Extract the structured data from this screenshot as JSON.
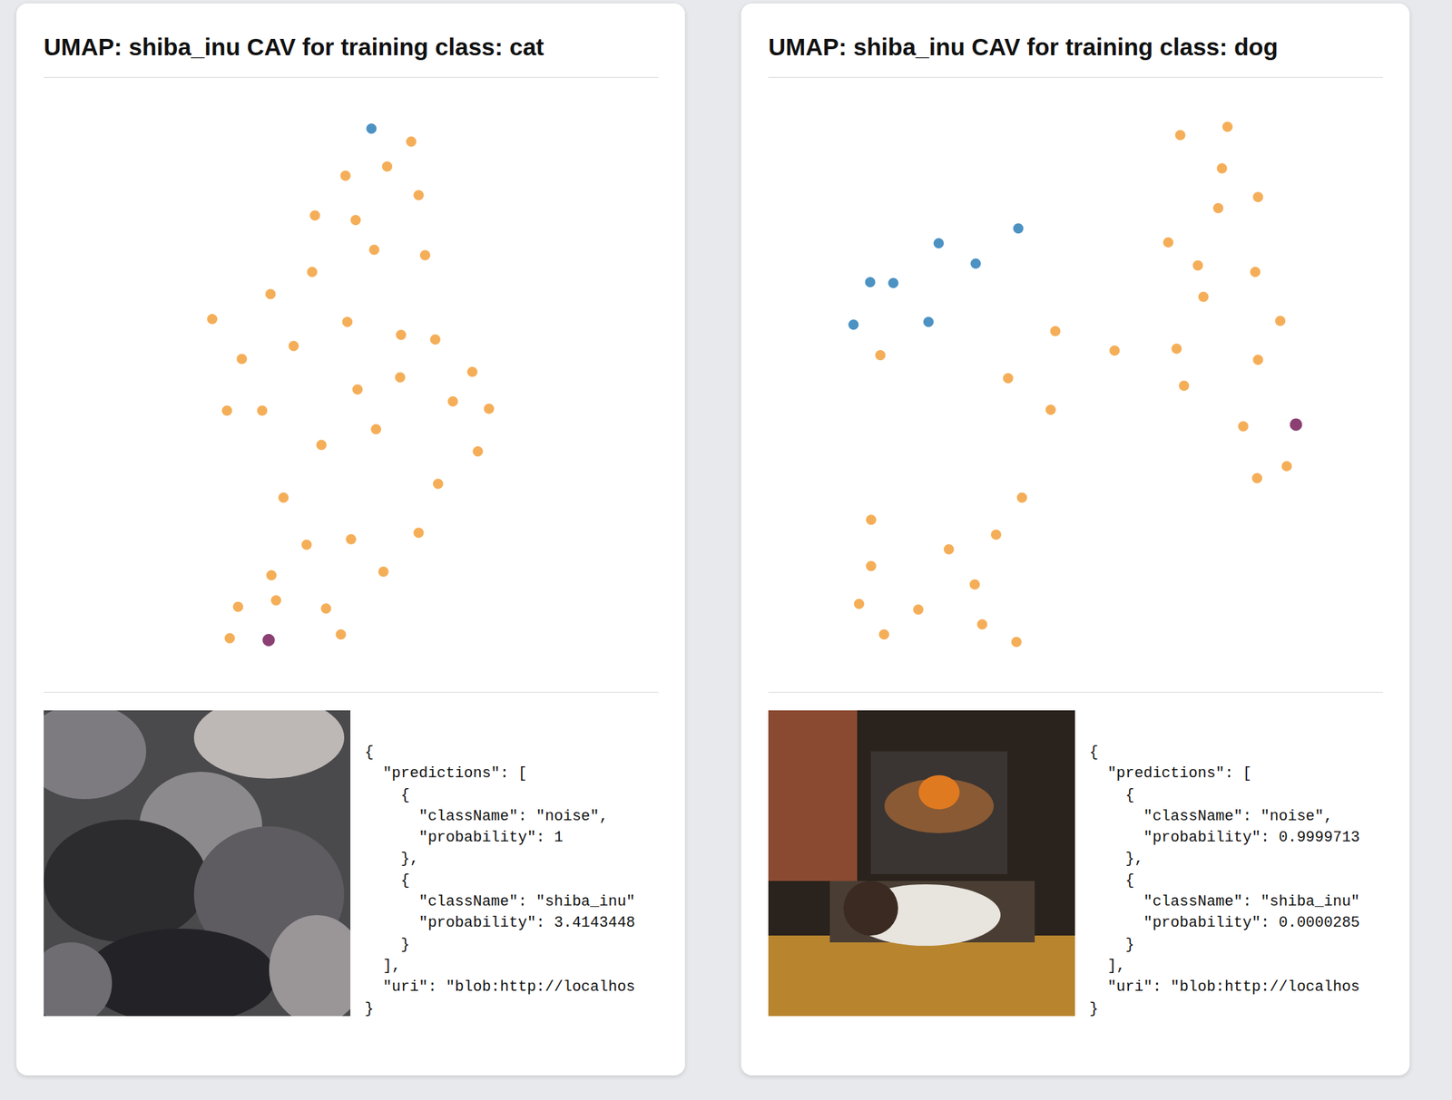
{
  "chart_data": [
    {
      "type": "scatter",
      "title": "UMAP: shiba_inu CAV for training class: cat",
      "xlim": [
        0,
        664
      ],
      "ylim": [
        0,
        650
      ],
      "tick_labels": false,
      "grid": false,
      "marker": "circle",
      "series": [
        {
          "color": "#f39a2e",
          "points": [
            [
              397,
              587
            ],
            [
              371,
              560
            ],
            [
              326,
              550
            ],
            [
              405,
              529
            ],
            [
              293,
              507
            ],
            [
              337,
              502
            ],
            [
              357,
              470
            ],
            [
              412,
              464
            ],
            [
              290,
              446
            ],
            [
              245,
              422
            ],
            [
              182,
              395
            ],
            [
              328,
              392
            ],
            [
              386,
              378
            ],
            [
              423,
              373
            ],
            [
              214,
              352
            ],
            [
              270,
              366
            ],
            [
              463,
              338
            ],
            [
              385,
              332
            ],
            [
              339,
              319
            ],
            [
              442,
              306
            ],
            [
              481,
              298
            ],
            [
              198,
              296
            ],
            [
              236,
              296
            ],
            [
              359,
              276
            ],
            [
              300,
              259
            ],
            [
              469,
              252
            ],
            [
              426,
              217
            ],
            [
              259,
              202
            ],
            [
              405,
              164
            ],
            [
              332,
              157
            ],
            [
              284,
              151
            ],
            [
              367,
              122
            ],
            [
              246,
              118
            ],
            [
              251,
              91
            ],
            [
              210,
              84
            ],
            [
              305,
              82
            ],
            [
              201,
              50
            ],
            [
              321,
              54
            ]
          ]
        },
        {
          "color": "#1f77b4",
          "points": [
            [
              354,
              601
            ]
          ]
        },
        {
          "color": "#6e0f4f",
          "points": [
            [
              243,
              48
            ]
          ]
        }
      ]
    },
    {
      "type": "scatter",
      "title": "UMAP: shiba_inu CAV for training class: dog",
      "xlim": [
        0,
        664
      ],
      "ylim": [
        0,
        650
      ],
      "tick_labels": false,
      "grid": false,
      "marker": "circle",
      "series": [
        {
          "color": "#f39a2e",
          "points": [
            [
              445,
              594
            ],
            [
              496,
              603
            ],
            [
              490,
              558
            ],
            [
              529,
              527
            ],
            [
              486,
              515
            ],
            [
              432,
              478
            ],
            [
              464,
              453
            ],
            [
              526,
              446
            ],
            [
              470,
              419
            ],
            [
              553,
              393
            ],
            [
              310,
              382
            ],
            [
              121,
              356
            ],
            [
              374,
              361
            ],
            [
              441,
              363
            ],
            [
              529,
              351
            ],
            [
              259,
              331
            ],
            [
              449,
              323
            ],
            [
              305,
              297
            ],
            [
              513,
              279
            ],
            [
              560,
              236
            ],
            [
              528,
              223
            ],
            [
              274,
              202
            ],
            [
              111,
              178
            ],
            [
              246,
              162
            ],
            [
              195,
              146
            ],
            [
              111,
              128
            ],
            [
              223,
              108
            ],
            [
              98,
              87
            ],
            [
              162,
              81
            ],
            [
              125,
              54
            ],
            [
              231,
              65
            ],
            [
              268,
              46
            ]
          ]
        },
        {
          "color": "#1f77b4",
          "points": [
            [
              270,
              493
            ],
            [
              184,
              477
            ],
            [
              224,
              455
            ],
            [
              110,
              435
            ],
            [
              135,
              434
            ],
            [
              92,
              389
            ],
            [
              173,
              392
            ]
          ]
        },
        {
          "color": "#6e0f4f",
          "points": [
            [
              570,
              281
            ]
          ]
        }
      ]
    }
  ],
  "panels": [
    {
      "prediction_text": [
        "{",
        "  \"predictions\": [",
        "    {",
        "      \"className\": \"noise\",",
        "      \"probability\": 1",
        "    },",
        "    {",
        "      \"className\": \"shiba_inu\"",
        "      \"probability\": 3.4143448",
        "    }",
        "  ],",
        "  \"uri\": \"blob:http://localhos",
        "}"
      ]
    },
    {
      "prediction_text": [
        "{",
        "  \"predictions\": [",
        "    {",
        "      \"className\": \"noise\",",
        "      \"probability\": 0.9999713",
        "    },",
        "    {",
        "      \"className\": \"shiba_inu\"",
        "      \"probability\": 0.0000285",
        "    }",
        "  ],",
        "  \"uri\": \"blob:http://localhos",
        "}"
      ]
    }
  ]
}
